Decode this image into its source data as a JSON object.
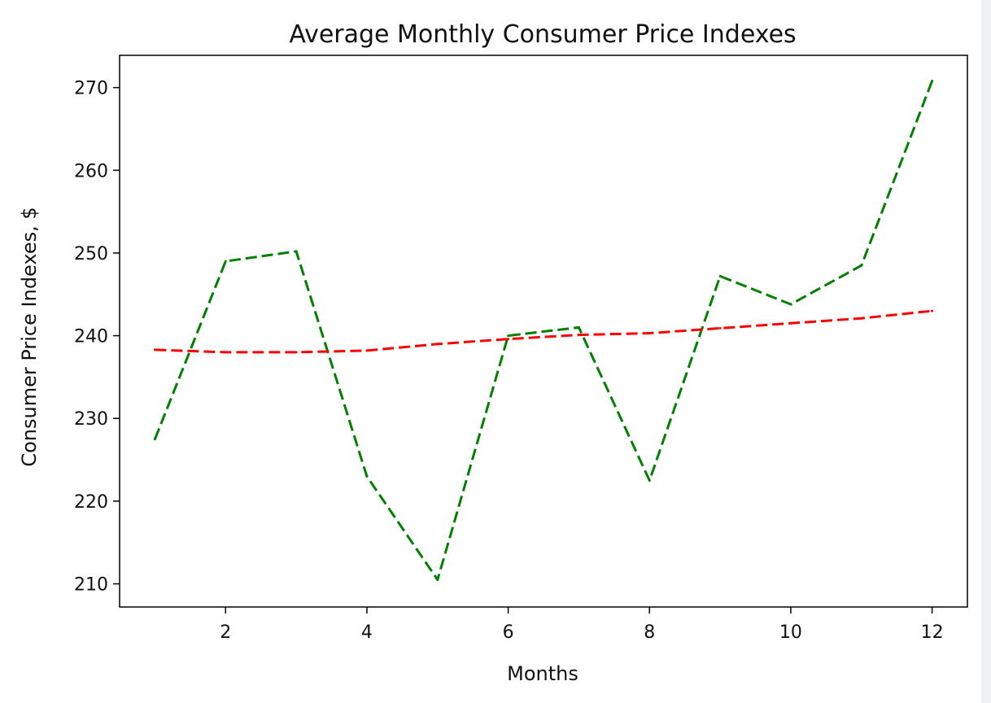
{
  "chart_data": {
    "type": "line",
    "title": "Average Monthly Consumer Price Indexes",
    "xlabel": "Months",
    "ylabel": "Consumer Price Indexes, $",
    "xlim": [
      0.5,
      12.5
    ],
    "ylim": [
      207.2,
      273.9
    ],
    "xticks": [
      2,
      4,
      6,
      8,
      10,
      12
    ],
    "yticks": [
      210,
      220,
      230,
      240,
      250,
      260,
      270
    ],
    "grid": false,
    "legend": null,
    "x": [
      1,
      2,
      3,
      4,
      5,
      6,
      7,
      8,
      9,
      10,
      11,
      12
    ],
    "series": [
      {
        "color": "#008000",
        "style": "dashed",
        "values": [
          227.5,
          249.0,
          250.2,
          223.0,
          210.5,
          240.0,
          241.0,
          222.5,
          247.2,
          243.8,
          248.5,
          270.8
        ]
      },
      {
        "color": "#ff0000",
        "style": "dashed",
        "values": [
          238.3,
          238.0,
          238.0,
          238.2,
          239.0,
          239.6,
          240.1,
          240.3,
          240.9,
          241.5,
          242.1,
          243.0
        ]
      }
    ]
  }
}
